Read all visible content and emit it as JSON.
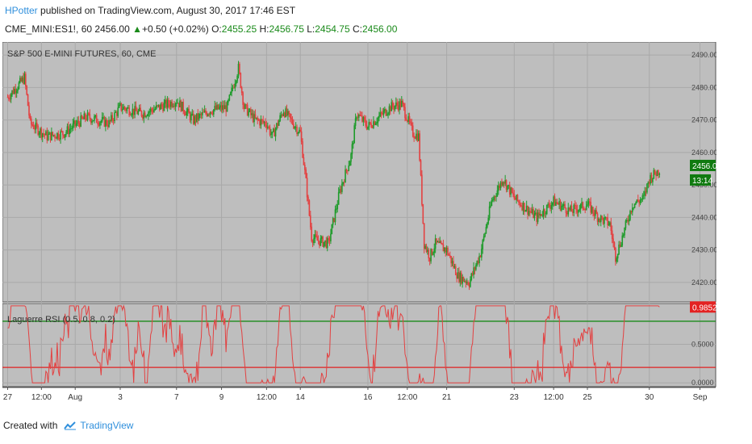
{
  "header": {
    "author": "HPotter",
    "published": " published on TradingView.com, August 30, 2017 17:46 EST",
    "symbol": "CME_MINI:ES1!, 60",
    "last": "2456.00",
    "change": "+0.50 (+0.02%)",
    "o_label": "O:",
    "o_value": "2455.25",
    "h_label": "H:",
    "h_value": "2456.75",
    "l_label": "L:",
    "l_value": "2454.75",
    "c_label": "C:",
    "c_value": "2456.00"
  },
  "footer": {
    "created_with": "Created with",
    "brand": "TradingView"
  },
  "colors": {
    "up": "#1f9b2b",
    "down": "#e34141",
    "panel_bg": "#bebebe",
    "page_bg": "#ffffff"
  },
  "chart_data": [
    {
      "type": "candlestick",
      "title": "S&P 500 E-MINI FUTURES, 60, CME",
      "ylim": [
        2415,
        2493
      ],
      "y_ticks": [
        2420,
        2430,
        2440,
        2450,
        2460,
        2470,
        2480,
        2490
      ],
      "y_tick_labels": [
        "2420.00",
        "2430.00",
        "2440.00",
        "2450.00",
        "2460.00",
        "2470.00",
        "2480.00",
        "2490.00"
      ],
      "last_price_label": "2456.00",
      "countdown_label": "13:14",
      "anchor_path": [
        [
          0,
          2477
        ],
        [
          3,
          2483
        ],
        [
          4,
          2469
        ],
        [
          7,
          2465
        ],
        [
          10,
          2466
        ],
        [
          14,
          2471
        ],
        [
          18,
          2469
        ],
        [
          20,
          2474
        ],
        [
          24,
          2472
        ],
        [
          27,
          2474
        ],
        [
          30,
          2476
        ],
        [
          33,
          2470
        ],
        [
          36,
          2473
        ],
        [
          39,
          2474
        ],
        [
          41,
          2486
        ],
        [
          42,
          2474
        ],
        [
          44,
          2470
        ],
        [
          46,
          2469
        ],
        [
          47,
          2465
        ],
        [
          49,
          2473
        ],
        [
          52,
          2466
        ],
        [
          53,
          2451
        ],
        [
          54,
          2434
        ],
        [
          55,
          2433
        ],
        [
          57,
          2432
        ],
        [
          59,
          2448
        ],
        [
          61,
          2459
        ],
        [
          62,
          2472
        ],
        [
          64,
          2468
        ],
        [
          66,
          2471
        ],
        [
          68,
          2474
        ],
        [
          70,
          2475
        ],
        [
          72,
          2466
        ],
        [
          73,
          2465
        ],
        [
          74,
          2432
        ],
        [
          75,
          2428
        ],
        [
          76,
          2432
        ],
        [
          78,
          2430
        ],
        [
          80,
          2422
        ],
        [
          82,
          2420
        ],
        [
          84,
          2429
        ],
        [
          86,
          2445
        ],
        [
          88,
          2452
        ],
        [
          90,
          2446
        ],
        [
          92,
          2443
        ],
        [
          94,
          2440
        ],
        [
          97,
          2445
        ],
        [
          100,
          2442
        ],
        [
          103,
          2444
        ],
        [
          105,
          2440
        ],
        [
          107,
          2438
        ],
        [
          108,
          2428
        ],
        [
          109,
          2433
        ],
        [
          111,
          2444
        ],
        [
          113,
          2446
        ],
        [
          114,
          2452
        ],
        [
          116,
          2455
        ]
      ]
    },
    {
      "type": "line",
      "title": "Laguerre RSI (0.5, 0.8, 0.2)",
      "ylim": [
        -0.05,
        1.03
      ],
      "y_ticks": [
        0.0,
        0.5
      ],
      "y_tick_labels": [
        "0.0000",
        "0.5000"
      ],
      "levels": [
        0.8,
        0.2
      ],
      "last_value_label": "0.9852",
      "last_value": 0.9852
    }
  ],
  "x_axis": {
    "ticks": [
      {
        "i": 0,
        "label": "27"
      },
      {
        "i": 6,
        "label": "12:00"
      },
      {
        "i": 12,
        "label": "Aug"
      },
      {
        "i": 20,
        "label": "3"
      },
      {
        "i": 30,
        "label": "7"
      },
      {
        "i": 38,
        "label": "9"
      },
      {
        "i": 46,
        "label": "12:00"
      },
      {
        "i": 52,
        "label": "14"
      },
      {
        "i": 64,
        "label": "16"
      },
      {
        "i": 71,
        "label": "12:00"
      },
      {
        "i": 78,
        "label": "21"
      },
      {
        "i": 90,
        "label": "23"
      },
      {
        "i": 97,
        "label": "12:00"
      },
      {
        "i": 103,
        "label": "25"
      },
      {
        "i": 114,
        "label": "30"
      },
      {
        "i": 123,
        "label": "Sep"
      }
    ],
    "n": 124
  }
}
